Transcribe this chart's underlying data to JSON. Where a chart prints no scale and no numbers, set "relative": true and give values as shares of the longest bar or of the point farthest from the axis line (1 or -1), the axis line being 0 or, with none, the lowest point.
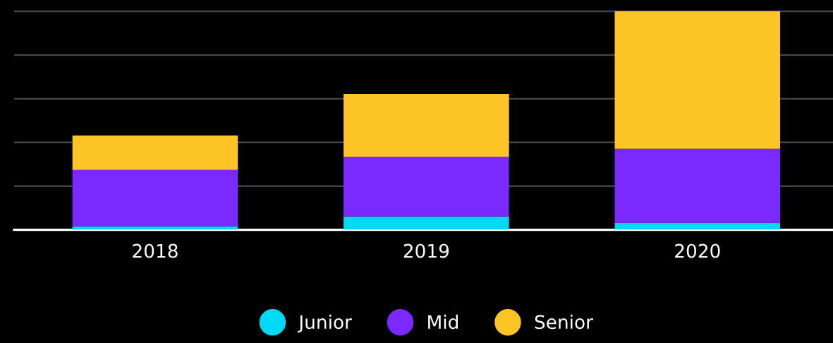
{
  "chart_data": {
    "type": "bar",
    "stacked": true,
    "relative": true,
    "categories": [
      "2018",
      "2019",
      "2020"
    ],
    "series": [
      {
        "name": "Junior",
        "color": "#00d9f5",
        "values": [
          0.016,
          0.061,
          0.032
        ]
      },
      {
        "name": "Mid",
        "color": "#7a28ff",
        "values": [
          0.258,
          0.274,
          0.339
        ]
      },
      {
        "name": "Senior",
        "color": "#fdc526",
        "values": [
          0.158,
          0.287,
          0.629
        ]
      }
    ],
    "grid": "y",
    "legend": "bottom"
  }
}
